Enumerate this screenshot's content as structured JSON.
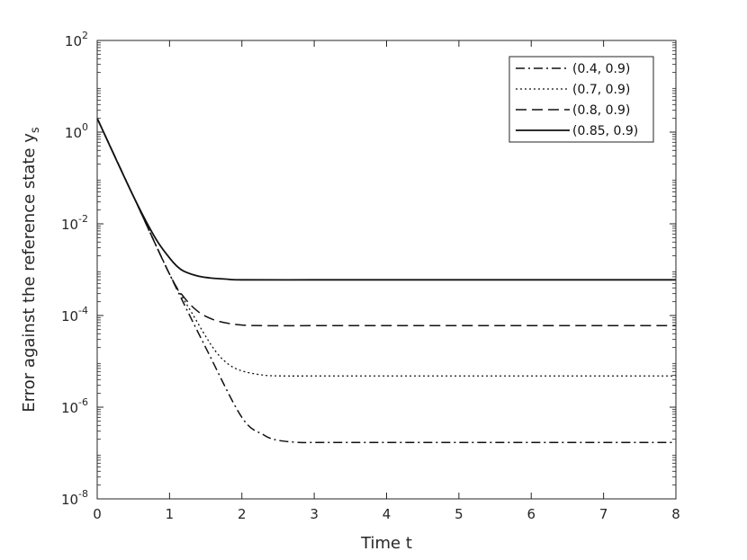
{
  "chart_data": {
    "type": "line",
    "title": "",
    "xlabel": "Time t",
    "ylabel": "Error against the reference state y",
    "ylabel_subscript": "s",
    "xlim": [
      0,
      8
    ],
    "ylim": [
      1e-08,
      100
    ],
    "yscale": "log",
    "x_ticks": [
      "0",
      "1",
      "2",
      "3",
      "4",
      "5",
      "6",
      "7",
      "8"
    ],
    "y_tick_exponents": [
      "-8",
      "-6",
      "-4",
      "-2",
      "0",
      "2"
    ],
    "y_tick_base": "10",
    "grid": false,
    "legend_position": "top-right",
    "series": [
      {
        "name": "(0.4, 0.9)",
        "dash": "dashdot",
        "x": [
          0,
          0.5,
          1.0,
          1.5,
          2.0,
          2.3,
          2.5,
          2.8,
          3.0,
          4.0,
          5.0,
          6.0,
          7.0,
          8.0
        ],
        "y": [
          2.0,
          0.04,
          0.0008,
          2e-05,
          6e-07,
          2.5e-07,
          1.9e-07,
          1.7e-07,
          1.7e-07,
          1.7e-07,
          1.7e-07,
          1.7e-07,
          1.7e-07,
          1.7e-07
        ]
      },
      {
        "name": "(0.7, 0.9)",
        "dash": "dotted",
        "x": [
          0,
          0.5,
          1.0,
          1.3,
          1.6,
          1.8,
          2.0,
          2.3,
          2.6,
          3.0,
          4.0,
          5.0,
          6.0,
          7.0,
          8.0
        ],
        "y": [
          2.0,
          0.04,
          0.0008,
          0.00012,
          2e-05,
          9e-06,
          6.2e-06,
          5e-06,
          4.8e-06,
          4.8e-06,
          4.8e-06,
          4.8e-06,
          4.8e-06,
          4.8e-06,
          4.8e-06
        ]
      },
      {
        "name": "(0.8, 0.9)",
        "dash": "dashed",
        "x": [
          0,
          0.5,
          1.0,
          1.2,
          1.4,
          1.6,
          1.8,
          2.0,
          2.3,
          3.0,
          4.0,
          5.0,
          6.0,
          7.0,
          8.0
        ],
        "y": [
          2.0,
          0.04,
          0.0008,
          0.00025,
          0.00012,
          8.2e-05,
          6.8e-05,
          6.2e-05,
          6e-05,
          6e-05,
          6e-05,
          6e-05,
          6e-05,
          6e-05,
          6e-05
        ]
      },
      {
        "name": "(0.85, 0.9)",
        "dash": "solid",
        "x": [
          0,
          0.5,
          0.8,
          1.0,
          1.1,
          1.2,
          1.4,
          1.6,
          1.8,
          2.0,
          3.0,
          4.0,
          5.0,
          6.0,
          7.0,
          8.0
        ],
        "y": [
          2.0,
          0.04,
          0.005,
          0.0018,
          0.0012,
          0.00092,
          0.00072,
          0.00065,
          0.00062,
          0.0006,
          0.0006,
          0.0006,
          0.0006,
          0.0006,
          0.0006,
          0.0006
        ]
      }
    ]
  }
}
